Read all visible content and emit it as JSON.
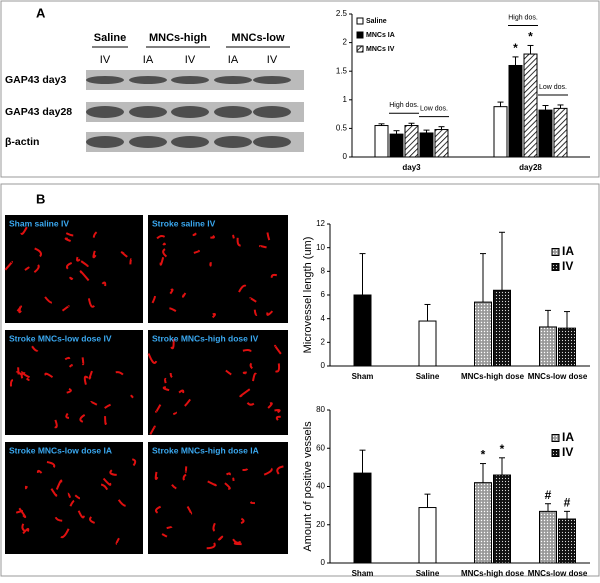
{
  "panel_a": {
    "label": "A",
    "blot": {
      "groups": [
        "Saline",
        "MNCs-high",
        "MNCs-low"
      ],
      "lanes": [
        "IV",
        "IA",
        "IV",
        "IA",
        "IV"
      ],
      "rows": [
        "GAP43 day3",
        "GAP43 day28",
        "β-actin"
      ]
    },
    "chart": {
      "type": "bar",
      "ylim": [
        0,
        2.5
      ],
      "yticks": [
        0,
        0.5,
        1,
        1.5,
        2,
        2.5
      ],
      "categories": [
        "day3",
        "day28"
      ],
      "legend": [
        {
          "name": "Saline",
          "fill": "white"
        },
        {
          "name": "MNCs IA",
          "fill": "black"
        },
        {
          "name": "MNCs IV",
          "fill": "hatch"
        }
      ],
      "groups": [
        {
          "bars": [
            {
              "fill": "white",
              "value": 0.55,
              "error": 0.03
            },
            {
              "fill": "black",
              "value": 0.4,
              "error": 0.06
            },
            {
              "fill": "hatch",
              "value": 0.55,
              "error": 0.04
            },
            {
              "fill": "black",
              "value": 0.42,
              "error": 0.05
            },
            {
              "fill": "hatch",
              "value": 0.48,
              "error": 0.05
            }
          ],
          "brackets": [
            {
              "text": "High dos.",
              "from": 1,
              "to": 2
            },
            {
              "text": "Low dos.",
              "from": 3,
              "to": 4
            }
          ]
        },
        {
          "bars": [
            {
              "fill": "white",
              "value": 0.88,
              "error": 0.08
            },
            {
              "fill": "black",
              "value": 1.6,
              "error": 0.15,
              "mark": "*"
            },
            {
              "fill": "hatch",
              "value": 1.8,
              "error": 0.15,
              "mark": "*"
            },
            {
              "fill": "black",
              "value": 0.82,
              "error": 0.08
            },
            {
              "fill": "hatch",
              "value": 0.85,
              "error": 0.06
            }
          ],
          "brackets": [
            {
              "text": "High dos.",
              "from": 1,
              "to": 2
            },
            {
              "text": "Low dos.",
              "from": 3,
              "to": 4
            }
          ]
        }
      ]
    }
  },
  "panel_b": {
    "label": "B",
    "images": [
      "Sham saline IV",
      "Stroke saline IV",
      "Stroke MNCs-low dose IV",
      "Stroke MNCs-high  dose IV",
      "Stroke MNCs-low dose IA",
      "Stroke MNCs-high dose IA"
    ],
    "charts": [
      {
        "type": "bar",
        "y_label": "Microvessel length (um)",
        "ylim": [
          0,
          12
        ],
        "yticks": [
          0,
          2,
          4,
          6,
          8,
          10,
          12
        ],
        "categories": [
          "Sham",
          "Saline",
          "MNCs-high dose",
          "MNCs-low dose"
        ],
        "legend": [
          {
            "name": "IA",
            "fill": "dotgrey"
          },
          {
            "name": "IV",
            "fill": "dotblack"
          }
        ],
        "groups": [
          {
            "bars": [
              {
                "fill": "black",
                "value": 6.0,
                "error": 3.5
              }
            ]
          },
          {
            "bars": [
              {
                "fill": "white",
                "value": 3.8,
                "error": 1.4
              }
            ]
          },
          {
            "bars": [
              {
                "fill": "dotgrey",
                "value": 5.4,
                "error": 4.1
              },
              {
                "fill": "dotblack",
                "value": 6.4,
                "error": 4.9
              }
            ]
          },
          {
            "bars": [
              {
                "fill": "dotgrey",
                "value": 3.3,
                "error": 1.4
              },
              {
                "fill": "dotblack",
                "value": 3.2,
                "error": 1.4
              }
            ]
          }
        ]
      },
      {
        "type": "bar",
        "y_label": "Amount of positive vessels",
        "ylim": [
          0,
          80
        ],
        "yticks": [
          0,
          20,
          40,
          60,
          80
        ],
        "categories": [
          "Sham",
          "Saline",
          "MNCs-high dose",
          "MNCs-low dose"
        ],
        "legend": [
          {
            "name": "IA",
            "fill": "dotgrey"
          },
          {
            "name": "IV",
            "fill": "dotblack"
          }
        ],
        "groups": [
          {
            "bars": [
              {
                "fill": "black",
                "value": 47,
                "error": 12
              }
            ]
          },
          {
            "bars": [
              {
                "fill": "white",
                "value": 29,
                "error": 7
              }
            ]
          },
          {
            "bars": [
              {
                "fill": "dotgrey",
                "value": 42,
                "error": 10,
                "mark": "*"
              },
              {
                "fill": "dotblack",
                "value": 46,
                "error": 9,
                "mark": "*"
              }
            ]
          },
          {
            "bars": [
              {
                "fill": "dotgrey",
                "value": 27,
                "error": 4,
                "mark": "#"
              },
              {
                "fill": "dotblack",
                "value": 23,
                "error": 4,
                "mark": "#"
              }
            ]
          }
        ]
      }
    ]
  }
}
